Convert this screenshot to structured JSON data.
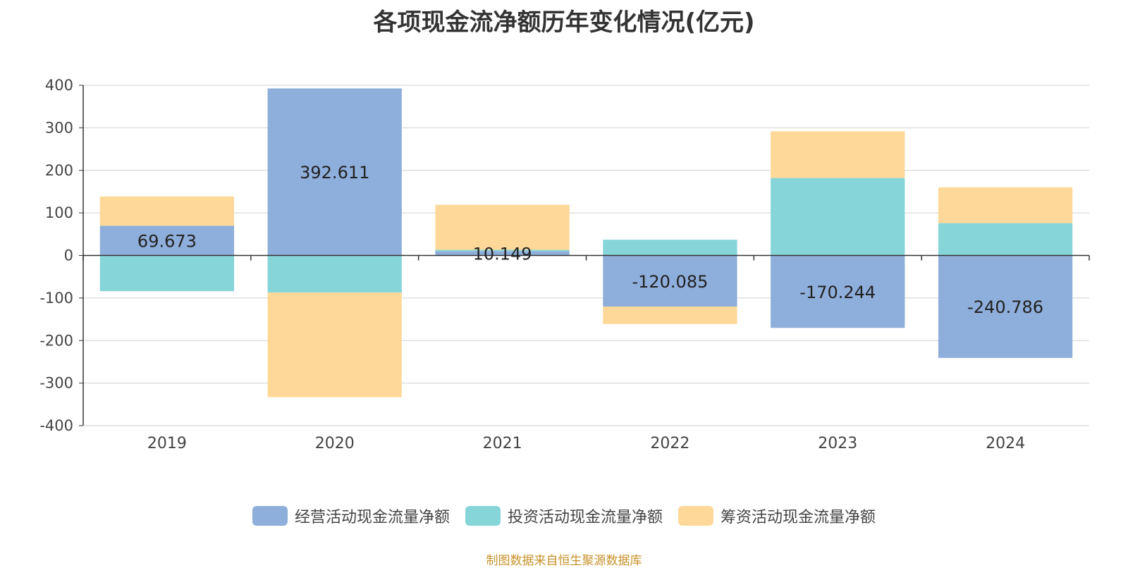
{
  "chart_data": {
    "type": "bar",
    "stacked": true,
    "title": "各项现金流净额历年变化情况(亿元)",
    "categories": [
      "2019",
      "2020",
      "2021",
      "2022",
      "2023",
      "2024"
    ],
    "ylim": [
      -400,
      400
    ],
    "yticks": [
      "400",
      "300",
      "200",
      "100",
      "0",
      "-100",
      "-200",
      "-300",
      "-400"
    ],
    "grid": true,
    "legend_position": "bottom",
    "series": [
      {
        "name": "经营活动现金流量净额",
        "color": "#8eaedb",
        "values": [
          69.673,
          392.611,
          10.149,
          -120.085,
          -170.244,
          -240.786
        ],
        "labels": [
          "69.673",
          "392.611",
          "10.149",
          "-120.085",
          "-170.244",
          "-240.786"
        ]
      },
      {
        "name": "投资活动现金流量净额",
        "color": "#86d5d9",
        "values": [
          -84,
          -87,
          3,
          37,
          182,
          76
        ]
      },
      {
        "name": "筹资活动现金流量净额",
        "color": "#fdd898",
        "values": [
          69,
          -246,
          106,
          -41,
          110,
          84
        ]
      }
    ]
  },
  "source": "制图数据来自恒生聚源数据库"
}
